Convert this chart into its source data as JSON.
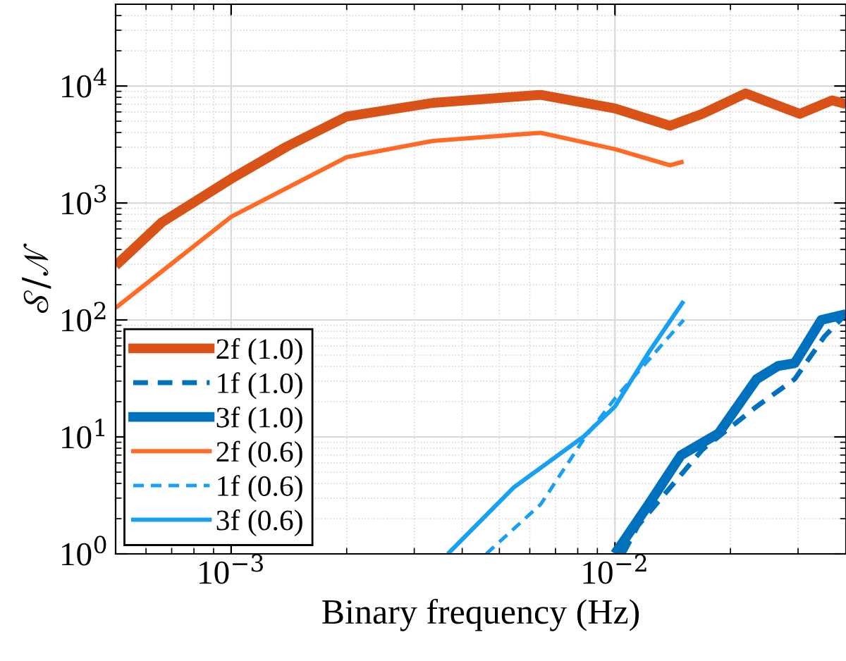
{
  "chart_data": {
    "type": "line",
    "xlabel": "Binary frequency (Hz)",
    "ylabel": "𝒮/𝒩",
    "log": "xy",
    "grid": true,
    "legend": "bottom left",
    "xlim": [
      0.0005,
      0.04
    ],
    "ylim": [
      1,
      50000
    ],
    "xticks": [
      {
        "value": 0.001,
        "label": "10$^{−3}$"
      },
      {
        "value": 0.01,
        "label": "10$^{−2}$"
      }
    ],
    "yticks": [
      {
        "value": 1,
        "label": "10$^{0}$"
      },
      {
        "value": 10,
        "label": "10$^{1}$"
      },
      {
        "value": 100,
        "label": "10$^{2}$"
      },
      {
        "value": 1000,
        "label": "10$^{3}$"
      },
      {
        "value": 10000,
        "label": "10$^{4}$"
      }
    ],
    "series": [
      {
        "name": "2f (1.0)",
        "color": "#d95319",
        "line_style": "solid",
        "x": [
          0.0005,
          0.00066,
          0.001,
          0.0014,
          0.002,
          0.00335,
          0.00641,
          0.01,
          0.0139,
          0.0169,
          0.0219,
          0.0303,
          0.0368,
          0.04
        ],
        "values": [
          291,
          684,
          1607,
          3050,
          5480,
          7170,
          8400,
          6430,
          4570,
          5780,
          8650,
          5780,
          7540,
          7000
        ]
      },
      {
        "name": "1f (1.0)",
        "color": "#0072bd",
        "line_style": "dashed",
        "x": [
          0.0105,
          0.01148,
          0.0169,
          0.0234,
          0.0294,
          0.0352,
          0.04
        ],
        "values": [
          1.0,
          1.74,
          7.8,
          18.2,
          31.2,
          72.6,
          112
        ]
      },
      {
        "name": "3f (1.0)",
        "color": "#0072bd",
        "line_style": "solid",
        "x": [
          0.01,
          0.01225,
          0.01486,
          0.01862,
          0.0234,
          0.0266,
          0.0294,
          0.0345,
          0.04
        ],
        "values": [
          1.0,
          2.66,
          6.97,
          10.7,
          31.2,
          40.4,
          42.7,
          100,
          112
        ]
      },
      {
        "name": "2f (0.6)",
        "color": "#ff6a26",
        "line_style": "solid",
        "x": [
          0.0005,
          0.001,
          0.002,
          0.00335,
          0.00641,
          0.01,
          0.0139,
          0.0151
        ],
        "values": [
          127,
          762,
          2466,
          3390,
          3980,
          2885,
          2100,
          2260
        ]
      },
      {
        "name": "1f (0.6)",
        "color": "#1aa0f0",
        "line_style": "dashed",
        "x": [
          0.00462,
          0.00641,
          0.0083,
          0.01,
          0.0151
        ],
        "values": [
          1.0,
          2.66,
          9.6,
          21.3,
          100
        ]
      },
      {
        "name": "3f (0.6)",
        "color": "#1aa0f0",
        "line_style": "solid",
        "x": [
          0.00367,
          0.00544,
          0.0083,
          0.01,
          0.01225,
          0.0151
        ],
        "values": [
          1.0,
          3.68,
          10.1,
          18.2,
          52.8,
          145
        ]
      }
    ]
  }
}
